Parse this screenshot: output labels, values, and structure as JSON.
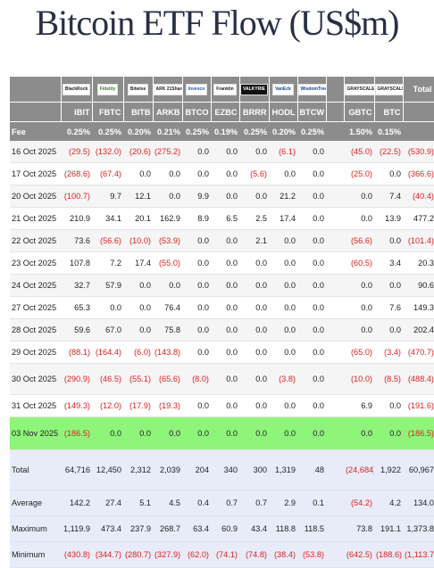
{
  "title": "Bitcoin ETF Flow (US$m)",
  "colors": {
    "header_bg": "#8c8c8c",
    "negative": "#e02020",
    "highlight": "#8ff57a",
    "stats_bg": "#e7ecf8"
  },
  "issuer_logos": [
    "BlackRock",
    "Fidelity",
    "Bitwise",
    "ARK 21Shares",
    "Invesco",
    "Franklin",
    "VALKYRIE",
    "VanEck",
    "WisdomTree",
    "GRAYSCALE",
    "GRAYSCALE"
  ],
  "total_label": "Total",
  "tickers": [
    "IBIT",
    "FBTC",
    "BITB",
    "ARKB",
    "BTCO",
    "EZBC",
    "BRRR",
    "HODL",
    "BTCW",
    "",
    "GBTC",
    "BTC"
  ],
  "fee": {
    "label": "Fee",
    "values": [
      "0.25%",
      "0.25%",
      "0.20%",
      "0.21%",
      "0.25%",
      "0.19%",
      "0.25%",
      "0.20%",
      "0.25%",
      "",
      "1.50%",
      "0.15%"
    ]
  },
  "rows": [
    {
      "date": "16 Oct 2025",
      "values": [
        "(29.5)",
        "(132.0)",
        "(20.6)",
        "(275.2)",
        "0.0",
        "0.0",
        "0.0",
        "(6.1)",
        "0.0",
        "",
        "(45.0)",
        "(22.5)"
      ],
      "total": "(530.9)"
    },
    {
      "date": "17 Oct 2025",
      "values": [
        "(268.6)",
        "(67.4)",
        "0.0",
        "0.0",
        "0.0",
        "0.0",
        "(5.6)",
        "0.0",
        "0.0",
        "",
        "(25.0)",
        "0.0"
      ],
      "total": "(366.6)"
    },
    {
      "date": "20 Oct 2025",
      "values": [
        "(100.7)",
        "9.7",
        "12.1",
        "0.0",
        "9.9",
        "0.0",
        "0.0",
        "21.2",
        "0.0",
        "",
        "0.0",
        "7.4"
      ],
      "total": "(40.4)"
    },
    {
      "date": "21 Oct 2025",
      "values": [
        "210.9",
        "34.1",
        "20.1",
        "162.9",
        "8.9",
        "6.5",
        "2.5",
        "17.4",
        "0.0",
        "",
        "0.0",
        "13.9"
      ],
      "total": "477.2"
    },
    {
      "date": "22 Oct 2025",
      "values": [
        "73.6",
        "(56.6)",
        "(10.0)",
        "(53.9)",
        "0.0",
        "0.0",
        "2.1",
        "0.0",
        "0.0",
        "",
        "(56.6)",
        "0.0"
      ],
      "total": "(101.4)"
    },
    {
      "date": "23 Oct 2025",
      "values": [
        "107.8",
        "7.2",
        "17.4",
        "(55.0)",
        "0.0",
        "0.0",
        "0.0",
        "0.0",
        "0.0",
        "",
        "(60.5)",
        "3.4"
      ],
      "total": "20.3"
    },
    {
      "date": "24 Oct 2025",
      "values": [
        "32.7",
        "57.9",
        "0.0",
        "0.0",
        "0.0",
        "0.0",
        "0.0",
        "0.0",
        "0.0",
        "",
        "0.0",
        "0.0"
      ],
      "total": "90.6"
    },
    {
      "date": "27 Oct 2025",
      "values": [
        "65.3",
        "0.0",
        "0.0",
        "76.4",
        "0.0",
        "0.0",
        "0.0",
        "0.0",
        "0.0",
        "",
        "0.0",
        "7.6"
      ],
      "total": "149.3"
    },
    {
      "date": "28 Oct 2025",
      "values": [
        "59.6",
        "67.0",
        "0.0",
        "75.8",
        "0.0",
        "0.0",
        "0.0",
        "0.0",
        "0.0",
        "",
        "0.0",
        "0.0"
      ],
      "total": "202.4"
    },
    {
      "date": "29 Oct 2025",
      "values": [
        "(88.1)",
        "(164.4)",
        "(6.0)",
        "(143.8)",
        "0.0",
        "0.0",
        "0.0",
        "0.0",
        "0.0",
        "",
        "(65.0)",
        "(3.4)"
      ],
      "total": "(470.7)"
    },
    {
      "date": "30 Oct 2025",
      "values": [
        "(290.9)",
        "(46.5)",
        "(55.1)",
        "(65.6)",
        "(8.0)",
        "0.0",
        "0.0",
        "(3.8)",
        "0.0",
        "",
        "(10.0)",
        "(8.5)"
      ],
      "total": "(488.4)"
    },
    {
      "date": "31 Oct 2025",
      "values": [
        "(149.3)",
        "(12.0)",
        "(17.9)",
        "(19.3)",
        "0.0",
        "0.0",
        "0.0",
        "0.0",
        "0.0",
        "",
        "6.9",
        "0.0"
      ],
      "total": "(191.6)"
    },
    {
      "date": "03 Nov 2025",
      "values": [
        "(186.5)",
        "0.0",
        "0.0",
        "0.0",
        "0.0",
        "0.0",
        "0.0",
        "0.0",
        "0.0",
        "",
        "0.0",
        "0.0"
      ],
      "total": "(186.5)"
    }
  ],
  "stats": [
    {
      "label": "Total",
      "values": [
        "64,716",
        "12,450",
        "2,312",
        "2,039",
        "204",
        "340",
        "300",
        "1,319",
        "48",
        "",
        "(24,684)",
        "1,922"
      ],
      "total": "60,967"
    },
    {
      "label": "Average",
      "values": [
        "142.2",
        "27.4",
        "5.1",
        "4.5",
        "0.4",
        "0.7",
        "0.7",
        "2.9",
        "0.1",
        "",
        "(54.2)",
        "4.2"
      ],
      "total": "134.0"
    },
    {
      "label": "Maximum",
      "values": [
        "1,119.9",
        "473.4",
        "237.9",
        "268.7",
        "63.4",
        "60.9",
        "43.4",
        "118.8",
        "118.5",
        "",
        "73.8",
        "191.1"
      ],
      "total": "1,373.8"
    },
    {
      "label": "Minimum",
      "values": [
        "(430.8)",
        "(344.7)",
        "(280.7)",
        "(327.9)",
        "(62.0)",
        "(74.1)",
        "(74.8)",
        "(38.4)",
        "(53.8)",
        "",
        "(642.5)",
        "(188.6)"
      ],
      "total": "(1,113.7)"
    }
  ]
}
